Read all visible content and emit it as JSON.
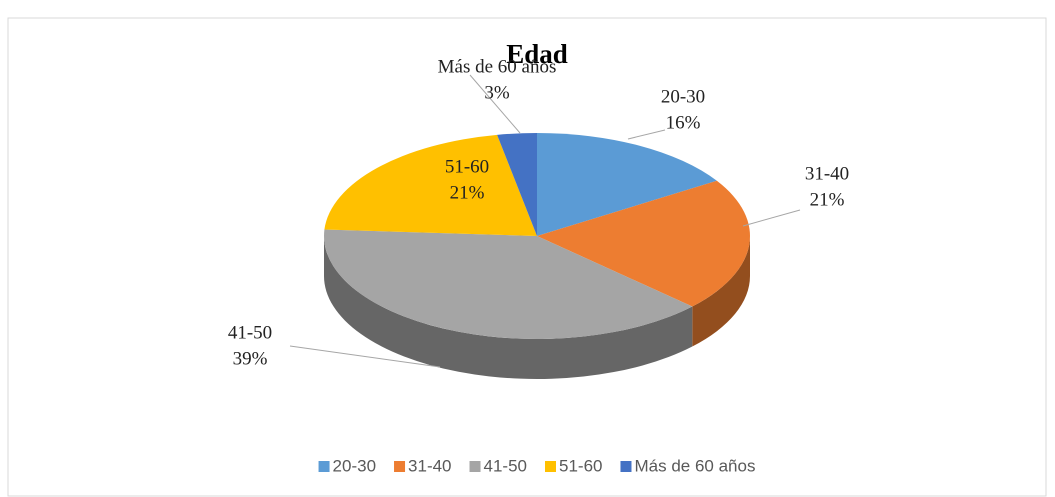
{
  "chart_data": {
    "type": "pie",
    "title": "Edad",
    "categories": [
      "20-30",
      "31-40",
      "41-50",
      "51-60",
      "Más de 60 años"
    ],
    "values": [
      16,
      21,
      39,
      21,
      3
    ],
    "value_labels": [
      "16%",
      "21%",
      "39%",
      "21%",
      "3%"
    ],
    "colors": [
      "#5b9bd5",
      "#ed7d31",
      "#a5a5a5",
      "#ffc000",
      "#4472c4"
    ],
    "legend": "bottom"
  }
}
